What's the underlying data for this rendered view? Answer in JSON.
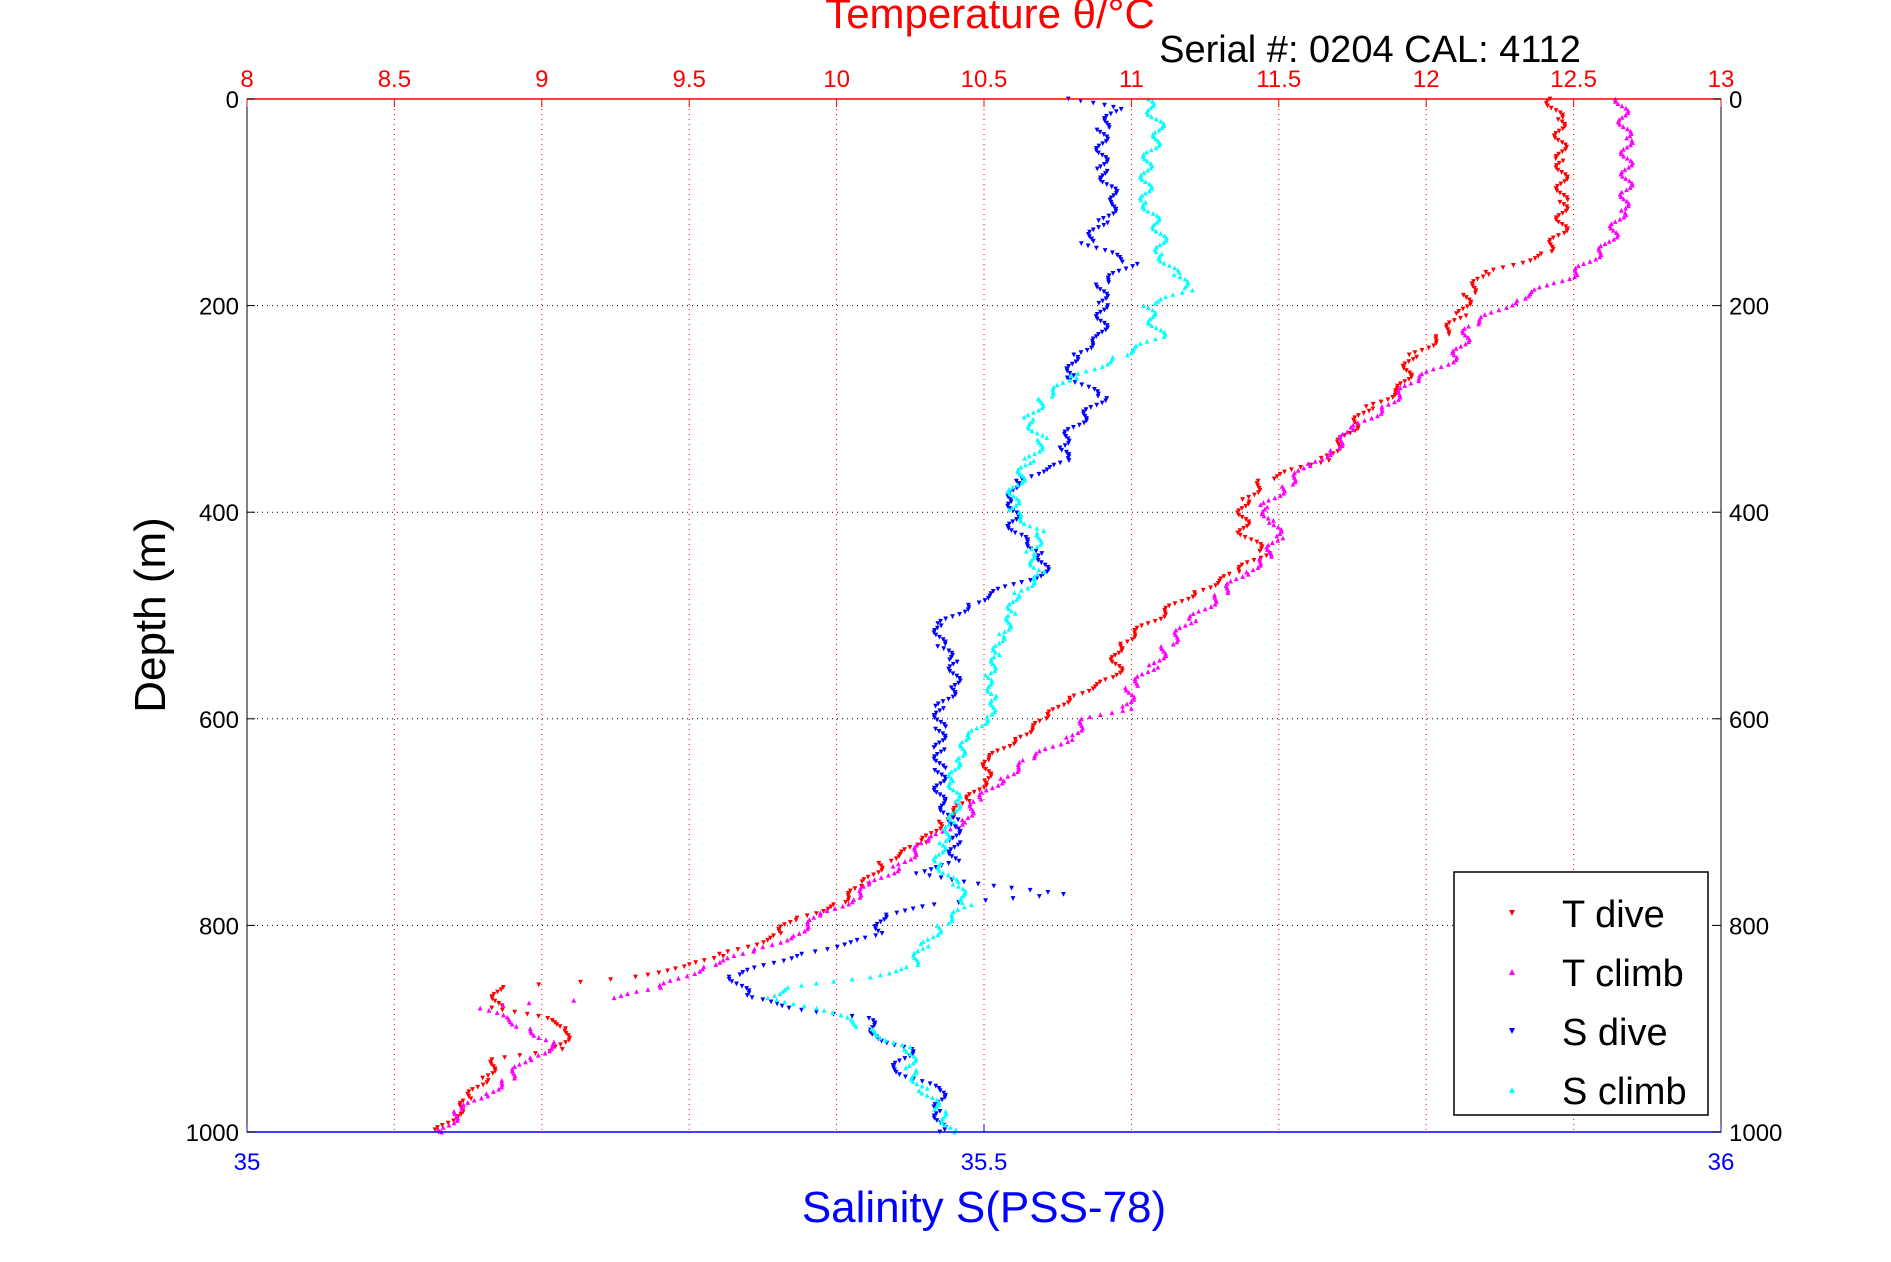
{
  "chart_data": {
    "type": "scatter",
    "title": "Temperature θ/°C",
    "subtitle": "Serial #: 0204  CAL: 4112",
    "ylabel": "Depth (m)",
    "xlabel_bottom": "Salinity S(PSS-78)",
    "top_axis": {
      "label": "Temperature θ/°C",
      "range": [
        8,
        13
      ],
      "ticks": [
        "8",
        "8.5",
        "9",
        "9.5",
        "10",
        "10.5",
        "11",
        "11.5",
        "12",
        "12.5",
        "13"
      ],
      "color": "#ff0000"
    },
    "bottom_axis": {
      "label": "Salinity S(PSS-78)",
      "range": [
        35,
        36
      ],
      "ticks": [
        "35",
        "35.5",
        "36"
      ],
      "color": "#0000ff"
    },
    "y_axis": {
      "range": [
        0,
        1000
      ],
      "reversed": true,
      "ticks": [
        "0",
        "200",
        "400",
        "600",
        "800",
        "1000"
      ]
    },
    "grid": true,
    "legend_position": "bottom-right",
    "series": [
      {
        "name": "T dive",
        "axis": "temperature",
        "color": "#ff0000",
        "marker": "triangle-down",
        "points": [
          [
            12.42,
            0
          ],
          [
            12.45,
            20
          ],
          [
            12.46,
            60
          ],
          [
            12.46,
            100
          ],
          [
            12.46,
            130
          ],
          [
            12.4,
            150
          ],
          [
            12.2,
            170
          ],
          [
            12.14,
            190
          ],
          [
            12.12,
            210
          ],
          [
            12.05,
            230
          ],
          [
            11.95,
            250
          ],
          [
            11.92,
            280
          ],
          [
            11.8,
            300
          ],
          [
            11.72,
            330
          ],
          [
            11.65,
            350
          ],
          [
            11.45,
            370
          ],
          [
            11.38,
            390
          ],
          [
            11.38,
            420
          ],
          [
            11.45,
            440
          ],
          [
            11.35,
            460
          ],
          [
            11.2,
            480
          ],
          [
            11.05,
            510
          ],
          [
            10.95,
            530
          ],
          [
            10.95,
            560
          ],
          [
            10.78,
            580
          ],
          [
            10.72,
            600
          ],
          [
            10.6,
            620
          ],
          [
            10.52,
            640
          ],
          [
            10.5,
            660
          ],
          [
            10.45,
            680
          ],
          [
            10.35,
            700
          ],
          [
            10.3,
            720
          ],
          [
            10.15,
            740
          ],
          [
            10.1,
            760
          ],
          [
            10.0,
            780
          ],
          [
            9.85,
            795
          ],
          [
            9.8,
            810
          ],
          [
            9.6,
            830
          ],
          [
            9.5,
            840
          ],
          [
            9.3,
            850
          ],
          [
            9.15,
            855
          ],
          [
            8.85,
            860
          ],
          [
            8.85,
            880
          ],
          [
            9.0,
            890
          ],
          [
            9.1,
            900
          ],
          [
            9.05,
            920
          ],
          [
            8.85,
            930
          ],
          [
            8.8,
            950
          ],
          [
            8.75,
            970
          ],
          [
            8.7,
            985
          ],
          [
            8.65,
            1000
          ]
        ]
      },
      {
        "name": "T climb",
        "axis": "temperature",
        "color": "#ff00ff",
        "marker": "triangle-up",
        "points": [
          [
            12.66,
            0
          ],
          [
            12.68,
            40
          ],
          [
            12.68,
            90
          ],
          [
            12.66,
            110
          ],
          [
            12.62,
            140
          ],
          [
            12.5,
            170
          ],
          [
            12.42,
            180
          ],
          [
            12.3,
            195
          ],
          [
            12.15,
            220
          ],
          [
            12.1,
            250
          ],
          [
            11.95,
            275
          ],
          [
            11.85,
            300
          ],
          [
            11.75,
            320
          ],
          [
            11.68,
            340
          ],
          [
            11.6,
            355
          ],
          [
            11.52,
            375
          ],
          [
            11.45,
            395
          ],
          [
            11.48,
            410
          ],
          [
            11.5,
            425
          ],
          [
            11.45,
            445
          ],
          [
            11.38,
            460
          ],
          [
            11.3,
            480
          ],
          [
            11.2,
            505
          ],
          [
            11.12,
            530
          ],
          [
            11.07,
            550
          ],
          [
            11.0,
            570
          ],
          [
            10.98,
            590
          ],
          [
            10.85,
            600
          ],
          [
            10.78,
            620
          ],
          [
            10.65,
            640
          ],
          [
            10.55,
            660
          ],
          [
            10.48,
            680
          ],
          [
            10.42,
            700
          ],
          [
            10.3,
            720
          ],
          [
            10.2,
            745
          ],
          [
            10.12,
            760
          ],
          [
            10.05,
            775
          ],
          [
            9.95,
            790
          ],
          [
            9.85,
            810
          ],
          [
            9.72,
            825
          ],
          [
            9.55,
            840
          ],
          [
            9.4,
            860
          ],
          [
            9.25,
            870
          ],
          [
            8.95,
            875
          ],
          [
            8.8,
            880
          ],
          [
            8.95,
            900
          ],
          [
            9.05,
            915
          ],
          [
            8.95,
            930
          ],
          [
            8.88,
            950
          ],
          [
            8.8,
            965
          ],
          [
            8.72,
            980
          ],
          [
            8.66,
            1000
          ]
        ]
      },
      {
        "name": "S dive",
        "axis": "salinity",
        "color": "#0000ff",
        "marker": "triangle-down",
        "points": [
          [
            35.56,
            0
          ],
          [
            35.59,
            10
          ],
          [
            35.58,
            30
          ],
          [
            35.58,
            70
          ],
          [
            35.59,
            100
          ],
          [
            35.58,
            120
          ],
          [
            35.57,
            140
          ],
          [
            35.6,
            160
          ],
          [
            35.58,
            180
          ],
          [
            35.58,
            200
          ],
          [
            35.58,
            230
          ],
          [
            35.56,
            250
          ],
          [
            35.56,
            270
          ],
          [
            35.58,
            290
          ],
          [
            35.56,
            320
          ],
          [
            35.55,
            340
          ],
          [
            35.56,
            350
          ],
          [
            35.52,
            370
          ],
          [
            35.52,
            390
          ],
          [
            35.52,
            420
          ],
          [
            35.54,
            440
          ],
          [
            35.54,
            460
          ],
          [
            35.52,
            470
          ],
          [
            35.49,
            490
          ],
          [
            35.47,
            510
          ],
          [
            35.47,
            530
          ],
          [
            35.48,
            545
          ],
          [
            35.48,
            570
          ],
          [
            35.47,
            590
          ],
          [
            35.47,
            610
          ],
          [
            35.47,
            630
          ],
          [
            35.47,
            650
          ],
          [
            35.47,
            680
          ],
          [
            35.48,
            700
          ],
          [
            35.48,
            720
          ],
          [
            35.48,
            740
          ],
          [
            35.45,
            750
          ],
          [
            35.5,
            760
          ],
          [
            35.55,
            770
          ],
          [
            35.47,
            780
          ],
          [
            35.43,
            790
          ],
          [
            35.43,
            810
          ],
          [
            35.37,
            830
          ],
          [
            35.33,
            850
          ],
          [
            35.34,
            870
          ],
          [
            35.37,
            880
          ],
          [
            35.42,
            890
          ],
          [
            35.43,
            910
          ],
          [
            35.45,
            920
          ],
          [
            35.44,
            940
          ],
          [
            35.47,
            960
          ],
          [
            35.47,
            980
          ],
          [
            35.47,
            1000
          ]
        ]
      },
      {
        "name": "S climb",
        "axis": "salinity",
        "color": "#00ffff",
        "marker": "triangle-up",
        "points": [
          [
            35.61,
            0
          ],
          [
            35.62,
            30
          ],
          [
            35.61,
            60
          ],
          [
            35.61,
            100
          ],
          [
            35.62,
            130
          ],
          [
            35.62,
            150
          ],
          [
            35.63,
            170
          ],
          [
            35.64,
            185
          ],
          [
            35.61,
            200
          ],
          [
            35.62,
            230
          ],
          [
            35.59,
            250
          ],
          [
            35.56,
            270
          ],
          [
            35.54,
            290
          ],
          [
            35.53,
            310
          ],
          [
            35.54,
            330
          ],
          [
            35.53,
            350
          ],
          [
            35.52,
            380
          ],
          [
            35.52,
            400
          ],
          [
            35.54,
            420
          ],
          [
            35.53,
            440
          ],
          [
            35.54,
            460
          ],
          [
            35.52,
            480
          ],
          [
            35.52,
            500
          ],
          [
            35.51,
            520
          ],
          [
            35.51,
            540
          ],
          [
            35.5,
            560
          ],
          [
            35.51,
            580
          ],
          [
            35.5,
            600
          ],
          [
            35.49,
            620
          ],
          [
            35.48,
            640
          ],
          [
            35.48,
            660
          ],
          [
            35.48,
            680
          ],
          [
            35.48,
            700
          ],
          [
            35.47,
            720
          ],
          [
            35.47,
            740
          ],
          [
            35.48,
            760
          ],
          [
            35.49,
            780
          ],
          [
            35.47,
            800
          ],
          [
            35.46,
            820
          ],
          [
            35.45,
            840
          ],
          [
            35.42,
            850
          ],
          [
            35.37,
            860
          ],
          [
            35.35,
            870
          ],
          [
            35.39,
            880
          ],
          [
            35.42,
            900
          ],
          [
            35.45,
            920
          ],
          [
            35.45,
            940
          ],
          [
            35.46,
            960
          ],
          [
            35.47,
            980
          ],
          [
            35.48,
            1000
          ]
        ]
      }
    ]
  }
}
